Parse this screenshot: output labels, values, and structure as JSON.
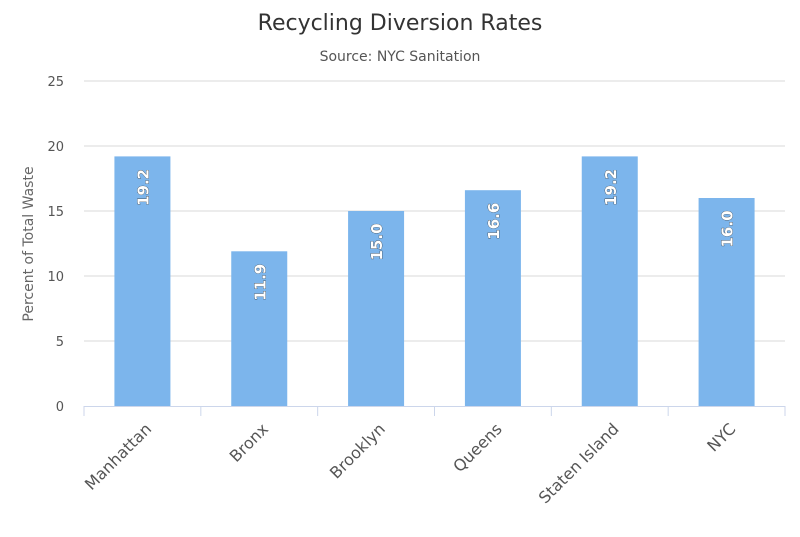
{
  "chart_data": {
    "type": "bar",
    "title": "Recycling Diversion Rates",
    "subtitle": "Source: NYC Sanitation",
    "xlabel": "",
    "ylabel": "Percent of Total Waste",
    "categories": [
      "Manhattan",
      "Bronx",
      "Brooklyn",
      "Queens",
      "Staten Island",
      "NYC"
    ],
    "values": [
      19.2,
      11.9,
      15.0,
      16.6,
      19.2,
      16.0
    ],
    "data_labels": [
      "19.2",
      "11.9",
      "15.0",
      "16.6",
      "19.2",
      "16.0"
    ],
    "ylim": [
      0,
      25
    ],
    "yticks": [
      0,
      5,
      10,
      15,
      20,
      25
    ],
    "grid": true,
    "legend": "none",
    "bar_color": "#7cb5ec"
  }
}
